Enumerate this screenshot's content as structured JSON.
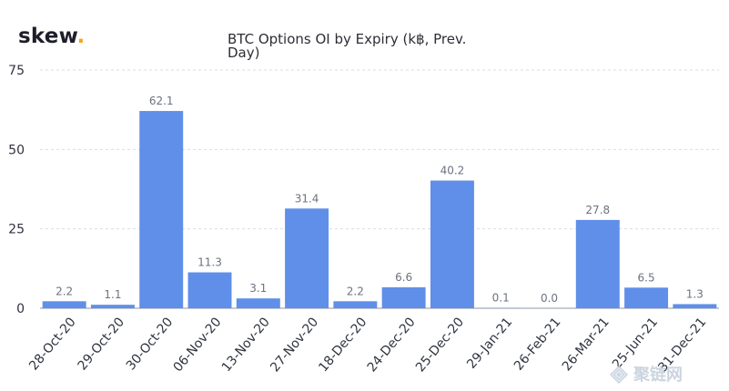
{
  "brand": {
    "name": "skew",
    "suffix": ".",
    "accent_color": "#f5a623",
    "text_color": "#1e1e2a"
  },
  "watermark": {
    "text": "聚链网",
    "icon": "diamond-logo-icon",
    "color": "#c9d2de"
  },
  "colors": {
    "bar": "#5f8fe8",
    "gridline": "#d8dde6",
    "axis": "#8f96a3",
    "text": "#2f3340",
    "label": "#6b7280"
  },
  "chart_data": {
    "type": "bar",
    "title": "BTC Options OI by Expiry (k฿, Prev. Day)",
    "categories": [
      "28-Oct-20",
      "29-Oct-20",
      "30-Oct-20",
      "06-Nov-20",
      "13-Nov-20",
      "27-Nov-20",
      "18-Dec-20",
      "24-Dec-20",
      "25-Dec-20",
      "29-Jan-21",
      "26-Feb-21",
      "26-Mar-21",
      "25-Jun-21",
      "31-Dec-21"
    ],
    "values": [
      2.2,
      1.1,
      62.1,
      11.3,
      3.1,
      31.4,
      2.2,
      6.6,
      40.2,
      0.1,
      0.0,
      27.8,
      6.5,
      1.3
    ],
    "data_labels": [
      "2.2",
      "1.1",
      "62.1",
      "11.3",
      "3.1",
      "31.4",
      "2.2",
      "6.6",
      "40.2",
      "0.1",
      "0.0",
      "27.8",
      "6.5",
      "1.3"
    ],
    "ylim": [
      0,
      75
    ],
    "yticks": [
      0,
      25,
      50,
      75
    ],
    "ytick_labels": [
      "0",
      "25",
      "50",
      "75"
    ],
    "xlabel": "",
    "ylabel": "",
    "grid": true,
    "legend": "none"
  }
}
